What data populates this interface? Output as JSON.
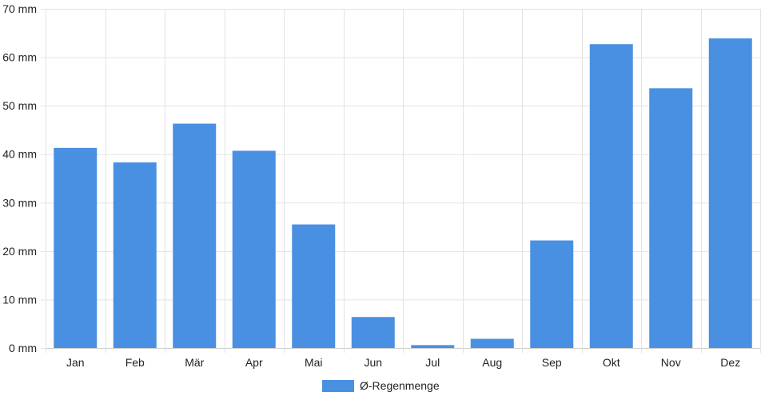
{
  "chart_data": {
    "type": "bar",
    "categories": [
      "Jan",
      "Feb",
      "Mär",
      "Apr",
      "Mai",
      "Jun",
      "Jul",
      "Aug",
      "Sep",
      "Okt",
      "Nov",
      "Dez"
    ],
    "series": [
      {
        "name": "Ø-Regenmenge",
        "color": "#4a90e2",
        "values": [
          41.3,
          38.3,
          46.3,
          40.7,
          25.5,
          6.4,
          0.6,
          1.9,
          22.2,
          62.7,
          53.6,
          63.9
        ]
      }
    ],
    "y_unit": "mm",
    "ylim": [
      0,
      70
    ],
    "yticks": [
      0,
      10,
      20,
      30,
      40,
      50,
      60,
      70
    ],
    "ytick_labels": [
      "0 mm",
      "10 mm",
      "20 mm",
      "30 mm",
      "40 mm",
      "50 mm",
      "60 mm",
      "70 mm"
    ],
    "grid": true,
    "legend_position": "bottom-center",
    "title": "",
    "xlabel": "",
    "ylabel": ""
  }
}
